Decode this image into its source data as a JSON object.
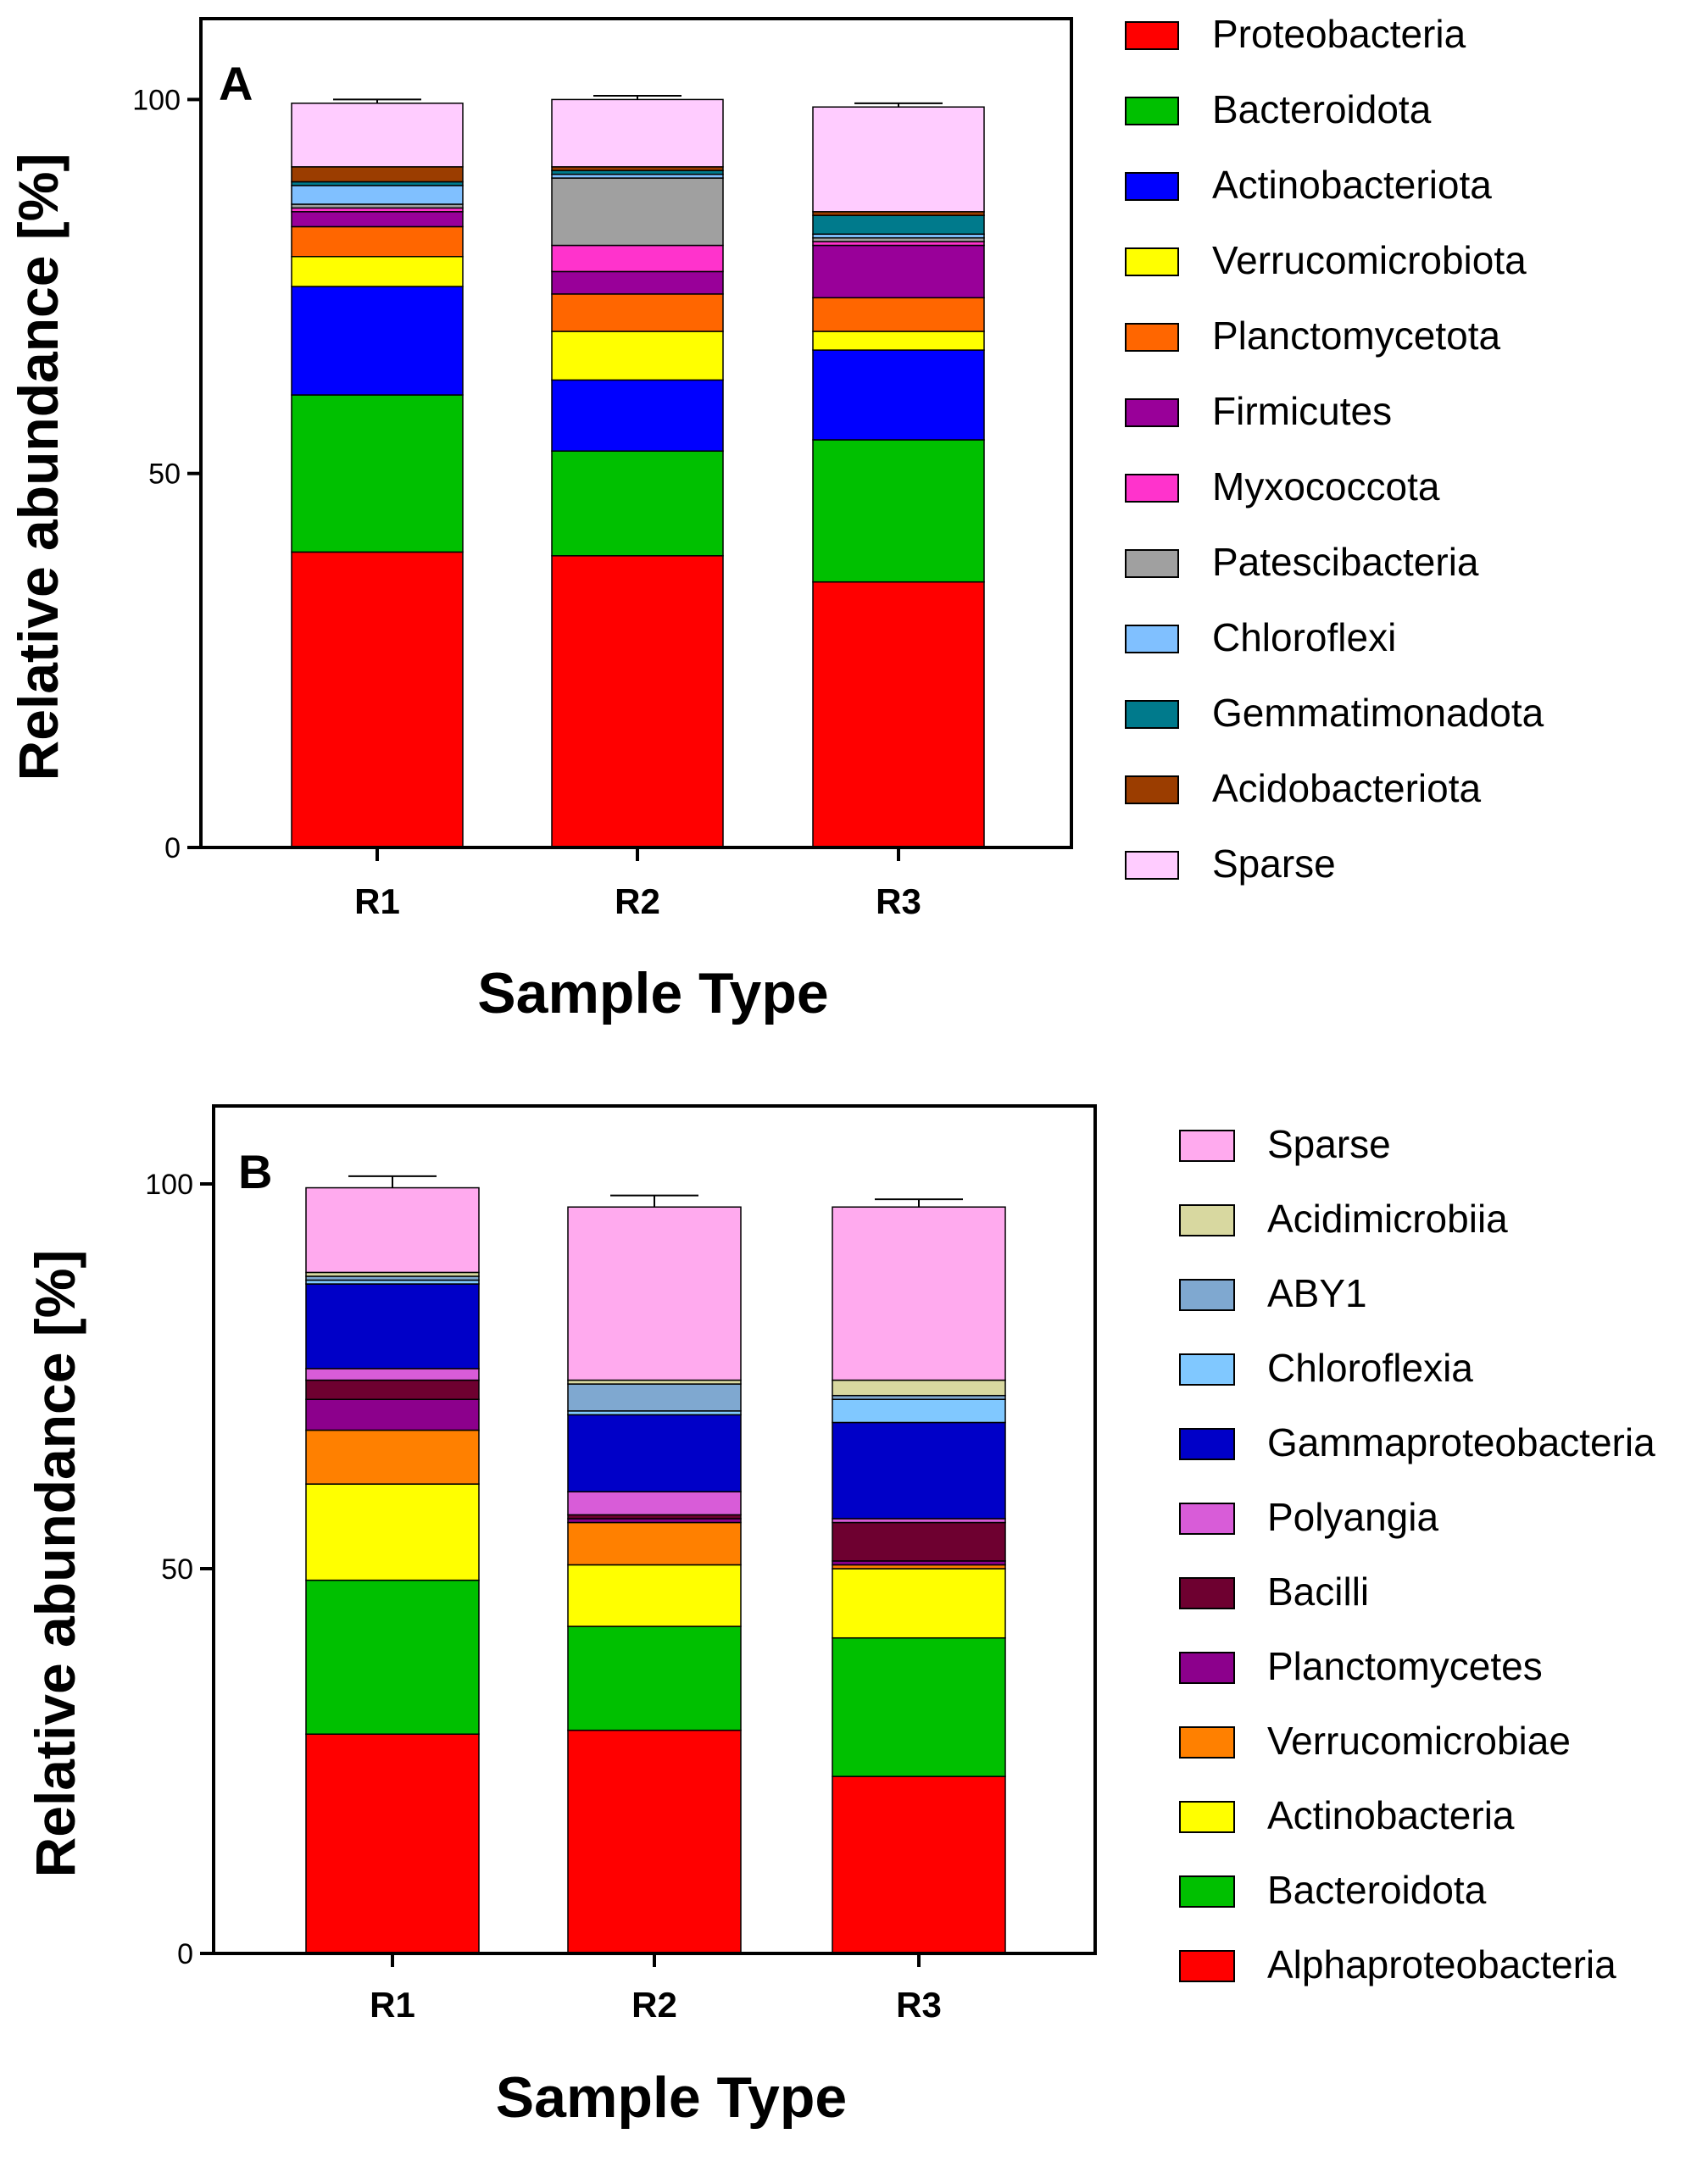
{
  "chart_data": [
    {
      "type": "bar",
      "panel_label": "A",
      "stacked": true,
      "xlabel": "Sample Type",
      "ylabel": "Relative abundance [%]",
      "ylim": [
        0,
        110
      ],
      "yticks": [
        "0",
        "50",
        "100"
      ],
      "categories": [
        "R1",
        "R2",
        "R3"
      ],
      "series": [
        {
          "name": "Proteobacteria",
          "color": "#ff0000",
          "values": [
            39.5,
            39,
            35.5
          ],
          "errors": [
            4.5,
            6.5,
            1.5
          ]
        },
        {
          "name": "Bacteroidota",
          "color": "#00c000",
          "values": [
            21,
            14,
            19
          ],
          "errors": [
            2.5,
            0.5,
            0.5
          ]
        },
        {
          "name": "Actinobacteriota",
          "color": "#0000ff",
          "values": [
            14.5,
            9.5,
            12
          ],
          "errors": [
            1,
            0.5,
            0.5
          ]
        },
        {
          "name": "Verrucomicrobiota",
          "color": "#ffff00",
          "values": [
            4,
            6.5,
            2.5
          ],
          "errors": [
            0.5,
            1.5,
            0.5
          ]
        },
        {
          "name": "Planctomycetota",
          "color": "#ff6600",
          "values": [
            4,
            5,
            4.5
          ],
          "errors": [
            0.5,
            0.5,
            0.5
          ]
        },
        {
          "name": "Firmicutes",
          "color": "#990099",
          "values": [
            2,
            3,
            7
          ],
          "errors": [
            0.5,
            0.5,
            0.5
          ]
        },
        {
          "name": "Myxococcota",
          "color": "#ff33cc",
          "values": [
            0.5,
            3.5,
            0.5
          ],
          "errors": [
            0.5,
            0.5,
            0.5
          ]
        },
        {
          "name": "Patescibacteria",
          "color": "#a0a0a0",
          "values": [
            0.5,
            9,
            0.5
          ],
          "errors": [
            0.5,
            1.5,
            0.5
          ]
        },
        {
          "name": "Chloroflexi",
          "color": "#80c0ff",
          "values": [
            2.5,
            0.5,
            0.5
          ],
          "errors": [
            0.5,
            0.5,
            0.5
          ]
        },
        {
          "name": "Gemmatimonadota",
          "color": "#007a8c",
          "values": [
            0.5,
            0.5,
            2.5
          ],
          "errors": [
            0.5,
            0.5,
            0.5
          ]
        },
        {
          "name": "Acidobacteriota",
          "color": "#9b3d00",
          "values": [
            2,
            0.5,
            0.5
          ],
          "errors": [
            0.5,
            0.5,
            0.5
          ]
        },
        {
          "name": "Sparse",
          "color": "#ffccff",
          "values": [
            8.5,
            9,
            14
          ],
          "errors": [
            0.5,
            0.5,
            0.5
          ]
        }
      ]
    },
    {
      "type": "bar",
      "panel_label": "B",
      "stacked": true,
      "xlabel": "Sample Type",
      "ylabel": "Relative abundance [%]",
      "ylim": [
        0,
        110
      ],
      "yticks": [
        "0",
        "50",
        "100"
      ],
      "categories": [
        "R1",
        "R2",
        "R3"
      ],
      "series": [
        {
          "name": "Alphaproteobacteria",
          "color": "#ff0000",
          "values": [
            28.5,
            29,
            23
          ],
          "errors": [
            1,
            1.5,
            0.5
          ]
        },
        {
          "name": "Bacteroidota",
          "color": "#00c000",
          "values": [
            20,
            13.5,
            18
          ],
          "errors": [
            1.5,
            0.5,
            1
          ]
        },
        {
          "name": "Actinobacteria",
          "color": "#ffff00",
          "values": [
            12.5,
            8,
            9
          ],
          "errors": [
            0.5,
            1,
            0.5
          ]
        },
        {
          "name": "Verrucomicrobiae",
          "color": "#ff8000",
          "values": [
            7,
            5.5,
            0.5
          ],
          "errors": [
            0.5,
            0.5,
            0.5
          ]
        },
        {
          "name": "Planctomycetes",
          "color": "#8c008c",
          "values": [
            4,
            0.5,
            0.5
          ],
          "errors": [
            0.5,
            0.5,
            0.5
          ]
        },
        {
          "name": "Bacilli",
          "color": "#6e0030",
          "values": [
            2.5,
            0.5,
            5
          ],
          "errors": [
            0.5,
            0.5,
            3
          ]
        },
        {
          "name": "Polyangia",
          "color": "#d85cd8",
          "values": [
            1.5,
            3,
            0.5
          ],
          "errors": [
            0.5,
            0.5,
            0.5
          ]
        },
        {
          "name": "Gammaproteobacteria",
          "color": "#0000c8",
          "values": [
            11,
            10,
            12.5
          ],
          "errors": [
            1.5,
            0.5,
            1
          ]
        },
        {
          "name": "Chloroflexia",
          "color": "#80c8ff",
          "values": [
            0.5,
            0.5,
            3
          ],
          "errors": [
            0.5,
            0.5,
            0.5
          ]
        },
        {
          "name": "ABY1",
          "color": "#7fa8d0",
          "values": [
            0.5,
            3.5,
            0.5
          ],
          "errors": [
            0.5,
            0.5,
            0.5
          ]
        },
        {
          "name": "Acidimicrobiia",
          "color": "#d8d8a0",
          "values": [
            0.5,
            0.5,
            2
          ],
          "errors": [
            0.5,
            0.5,
            0.5
          ]
        },
        {
          "name": "Sparse",
          "color": "#ffaaee",
          "values": [
            11,
            22.5,
            22.5
          ],
          "errors": [
            1.5,
            1.5,
            1
          ]
        }
      ]
    }
  ]
}
